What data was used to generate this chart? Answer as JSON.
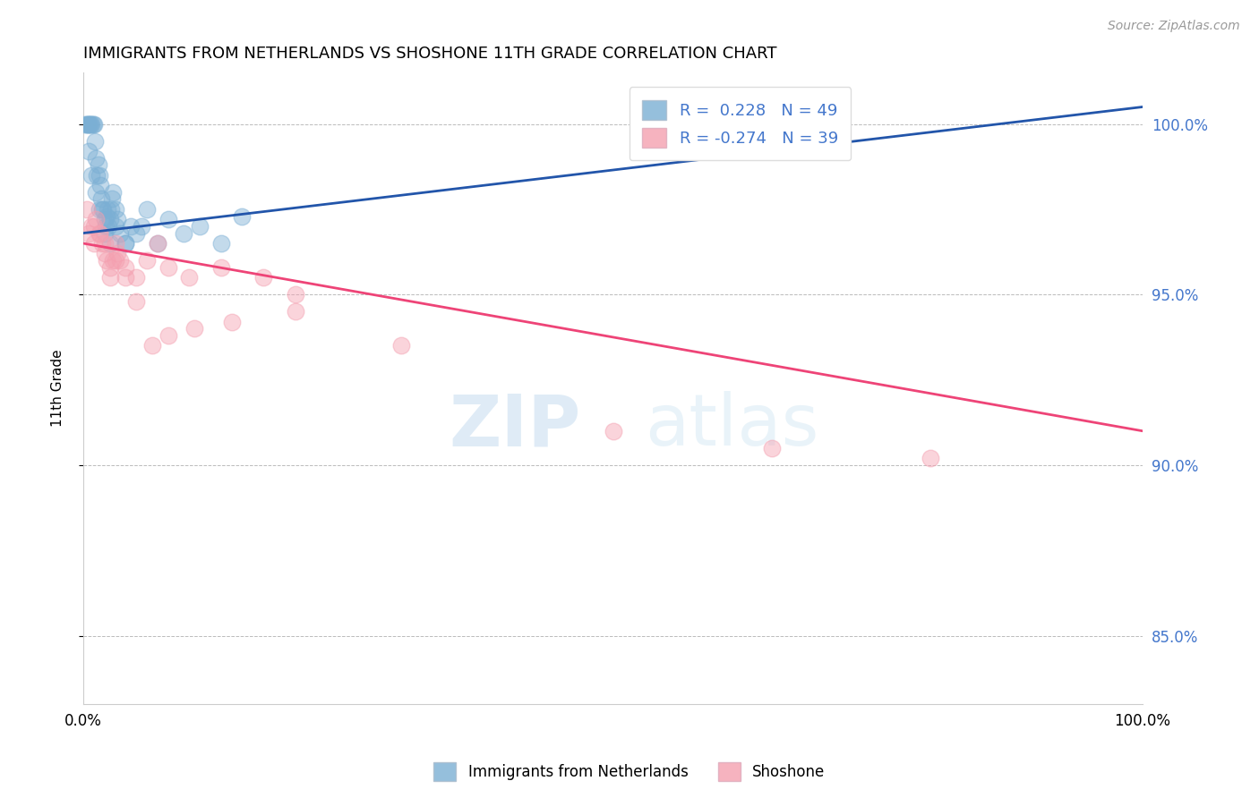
{
  "title": "IMMIGRANTS FROM NETHERLANDS VS SHOSHONE 11TH GRADE CORRELATION CHART",
  "source": "Source: ZipAtlas.com",
  "ylabel": "11th Grade",
  "legend_label1": "Immigrants from Netherlands",
  "legend_label2": "Shoshone",
  "R1": 0.228,
  "N1": 49,
  "R2": -0.274,
  "N2": 39,
  "xlim": [
    0.0,
    100.0
  ],
  "ylim": [
    83.0,
    101.5
  ],
  "yticks": [
    85.0,
    90.0,
    95.0,
    100.0
  ],
  "right_ytick_labels": [
    "85.0%",
    "90.0%",
    "95.0%",
    "100.0%"
  ],
  "bottom_xtick_labels": [
    "0.0%",
    "100.0%"
  ],
  "watermark_zip": "ZIP",
  "watermark_atlas": "atlas",
  "blue_color": "#7BAFD4",
  "pink_color": "#F4A0B0",
  "trend_blue": "#2255AA",
  "trend_pink": "#EE4477",
  "blue_trend_x0": 0.0,
  "blue_trend_y0": 96.8,
  "blue_trend_x1": 100.0,
  "blue_trend_y1": 100.5,
  "pink_trend_x0": 0.0,
  "pink_trend_y0": 96.5,
  "pink_trend_x1": 100.0,
  "pink_trend_y1": 91.0,
  "blue_points_x": [
    0.2,
    0.3,
    0.4,
    0.5,
    0.6,
    0.7,
    0.8,
    0.9,
    1.0,
    1.1,
    1.2,
    1.3,
    1.4,
    1.5,
    1.6,
    1.7,
    1.8,
    1.9,
    2.0,
    2.1,
    2.2,
    2.3,
    2.4,
    2.5,
    2.6,
    2.7,
    2.8,
    3.0,
    3.2,
    3.5,
    4.0,
    4.5,
    5.0,
    5.5,
    6.0,
    7.0,
    8.0,
    9.5,
    11.0,
    13.0,
    15.0,
    0.5,
    0.8,
    1.2,
    1.5,
    2.0,
    2.5,
    3.0,
    4.0
  ],
  "blue_points_y": [
    100.0,
    100.0,
    100.0,
    100.0,
    100.0,
    100.0,
    100.0,
    100.0,
    100.0,
    99.5,
    99.0,
    98.5,
    98.8,
    98.5,
    98.2,
    97.8,
    97.5,
    97.5,
    97.2,
    97.0,
    97.3,
    97.5,
    97.0,
    97.2,
    97.5,
    97.8,
    98.0,
    97.5,
    97.2,
    96.8,
    96.5,
    97.0,
    96.8,
    97.0,
    97.5,
    96.5,
    97.2,
    96.8,
    97.0,
    96.5,
    97.3,
    99.2,
    98.5,
    98.0,
    97.5,
    96.8,
    96.5,
    97.0,
    96.5
  ],
  "pink_points_x": [
    0.3,
    0.5,
    0.8,
    1.0,
    1.2,
    1.5,
    1.8,
    2.0,
    2.2,
    2.5,
    2.8,
    3.0,
    3.2,
    3.5,
    4.0,
    5.0,
    6.0,
    7.0,
    8.0,
    10.0,
    13.0,
    17.0,
    20.0,
    1.0,
    1.5,
    2.0,
    2.5,
    3.0,
    4.0,
    5.0,
    6.5,
    8.0,
    10.5,
    14.0,
    20.0,
    30.0,
    50.0,
    65.0,
    80.0
  ],
  "pink_points_y": [
    97.5,
    96.8,
    97.0,
    96.5,
    97.2,
    96.8,
    96.5,
    96.2,
    96.0,
    95.8,
    96.0,
    96.5,
    96.2,
    96.0,
    95.8,
    95.5,
    96.0,
    96.5,
    95.8,
    95.5,
    95.8,
    95.5,
    95.0,
    97.0,
    96.8,
    96.5,
    95.5,
    96.0,
    95.5,
    94.8,
    93.5,
    93.8,
    94.0,
    94.2,
    94.5,
    93.5,
    91.0,
    90.5,
    90.2
  ],
  "point_size": 180,
  "title_fontsize": 13,
  "axis_label_color": "#4477CC",
  "source_color": "#999999"
}
